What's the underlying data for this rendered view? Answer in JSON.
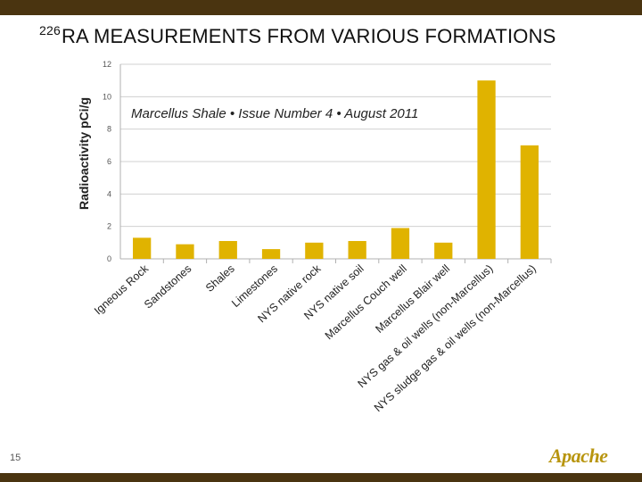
{
  "slide": {
    "title_superscript": "226",
    "title_text": "RA MEASUREMENTS FROM VARIOUS FORMATIONS",
    "page_number": "15",
    "logo_text": "Apache"
  },
  "colors": {
    "bar": "#e0b300",
    "header_bar": "#4a3410",
    "grid": "#d0d0d0",
    "annotation": "#222222"
  },
  "chart_data": {
    "type": "bar",
    "ylabel": "Radioactivity pCi/g",
    "xlabel": "",
    "ylim": [
      0,
      12
    ],
    "yticks": [
      0,
      2,
      4,
      6,
      8,
      10,
      12
    ],
    "grid": true,
    "annotation": "Marcellus Shale • Issue Number 4 • August 2011",
    "categories": [
      "Igneous Rock",
      "Sandstones",
      "Shales",
      "Limestones",
      "NYS native rock",
      "NYS native soil",
      "Marcellus Couch well",
      "Marcellus Blair well",
      "NYS gas & oil wells (non-Marcellus)",
      "NYS sludge gas & oil wells (non-Marcellus)"
    ],
    "values": [
      1.3,
      0.9,
      1.1,
      0.6,
      1.0,
      1.1,
      1.9,
      1.0,
      11.0,
      7.0
    ]
  }
}
